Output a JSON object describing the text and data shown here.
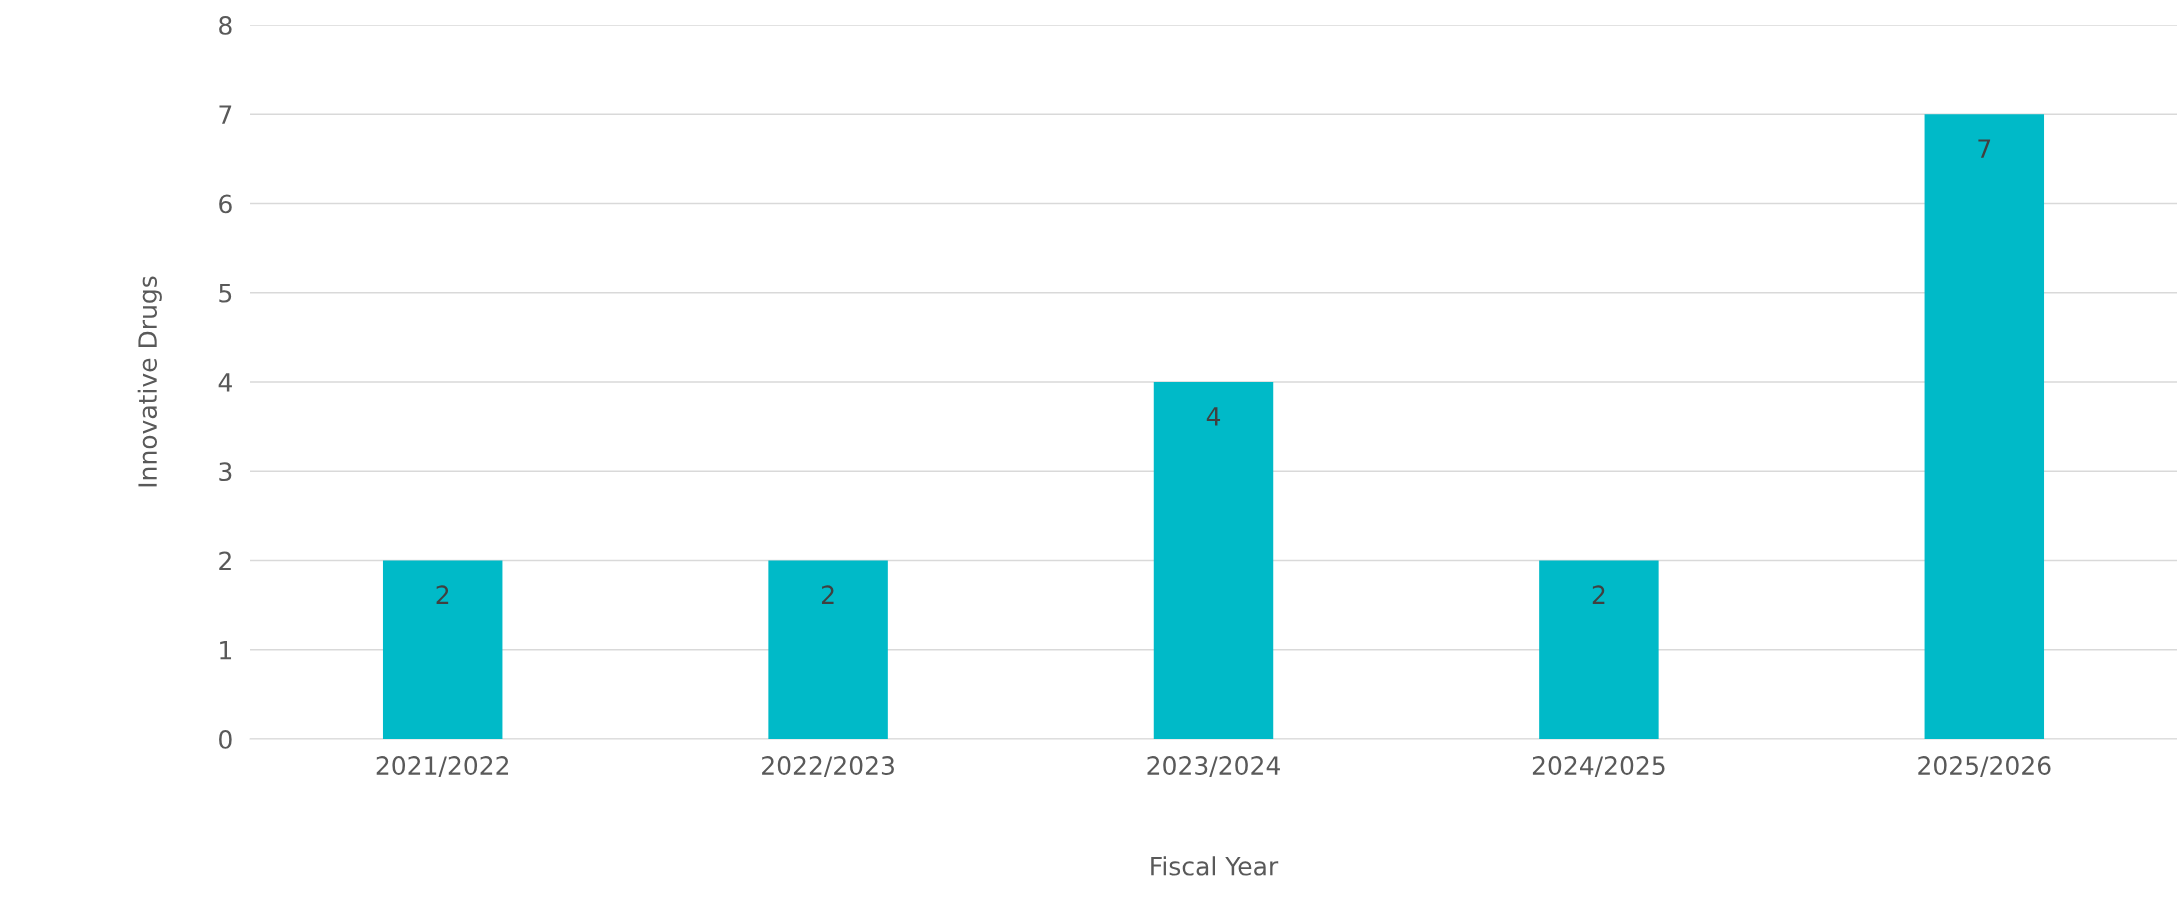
{
  "chart_data": {
    "type": "bar",
    "xlabel": "Fiscal Year",
    "ylabel": "Innovative Drugs",
    "categories": [
      "2021/2022",
      "2022/2023",
      "2023/2024",
      "2024/2025",
      "2025/2026"
    ],
    "values": [
      2,
      2,
      4,
      2,
      7
    ],
    "color": "#00bac8",
    "ylim": [
      0,
      8
    ],
    "yticks": [
      0,
      1,
      2,
      3,
      4,
      5,
      6,
      7,
      8
    ],
    "grid": "y",
    "data_labels": true
  }
}
